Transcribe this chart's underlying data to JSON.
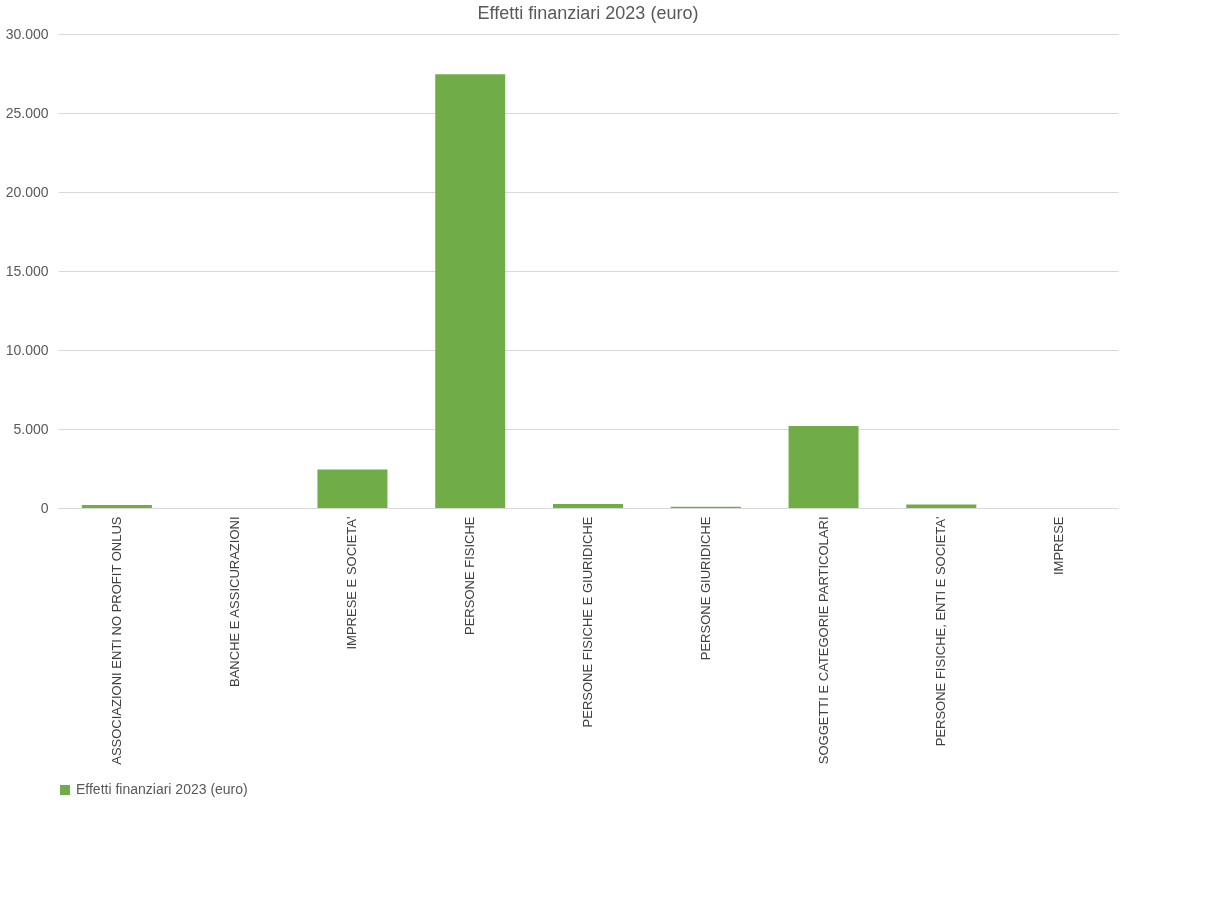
{
  "chart_data": {
    "type": "bar",
    "title": "Effetti finanziari 2023 (euro)",
    "categories": [
      "ASSOCIAZIONI ENTI NO PROFIT ONLUS",
      "BANCHE E ASSICURAZIONI",
      "IMPRESE E SOCIETA'",
      "PERSONE FISICHE",
      "PERSONE FISICHE E GIURIDICHE",
      "PERSONE GIURIDICHE",
      "SOGGETTI E CATEGORIE PARTICOLARI",
      "PERSONE FISICHE, ENTI E SOCIETA'",
      "IMPRESE"
    ],
    "series": [
      {
        "name": "Effetti finanziari 2023 (euro)",
        "color": "#70ad47",
        "values": [
          190,
          0,
          2440,
          27450,
          250,
          80,
          5190,
          220,
          0
        ]
      }
    ],
    "ylim": [
      0,
      30000
    ],
    "yticks": [
      {
        "value": 0,
        "label": "0"
      },
      {
        "value": 5000,
        "label": "5.000"
      },
      {
        "value": 10000,
        "label": "10.000"
      },
      {
        "value": 15000,
        "label": "15.000"
      },
      {
        "value": 20000,
        "label": "20.000"
      },
      {
        "value": 25000,
        "label": "25.000"
      },
      {
        "value": 30000,
        "label": "30.000"
      }
    ],
    "grid": "y",
    "legend": "bottom"
  }
}
